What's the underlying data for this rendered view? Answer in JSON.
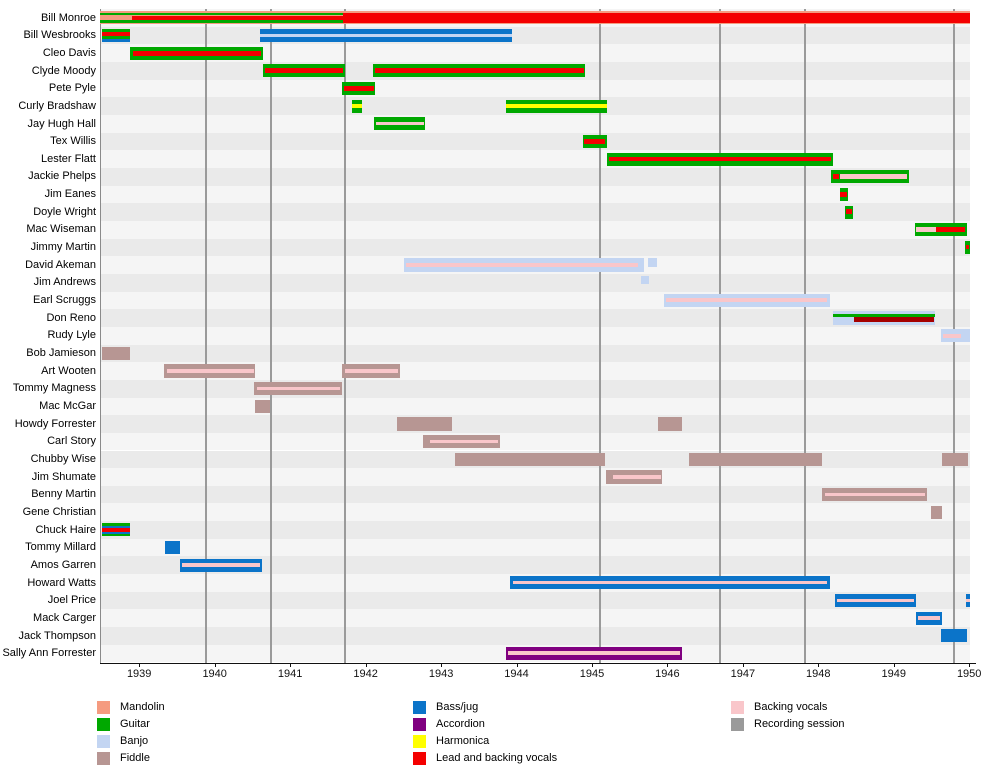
{
  "chart_data": {
    "type": "timeline",
    "title": "",
    "x_range": [
      1938.48,
      1950.01
    ],
    "x_ticks": [
      1939,
      1940,
      1941,
      1942,
      1943,
      1944,
      1945,
      1946,
      1947,
      1948,
      1949,
      1950
    ],
    "session_lines": [
      1939.89,
      1940.74,
      1941.73,
      1945.1,
      1946.7,
      1947.82,
      1949.8
    ],
    "colors": {
      "man": "#F59B80",
      "gtr": "#00A800",
      "ban": "#C3D5F2",
      "fid": "#B79693",
      "bas": "#0B74C9",
      "acc": "#800080",
      "har": "#FFFF00",
      "led": "#F40000",
      "drd": "#A50000",
      "bck": "#F9C6CA",
      "ses": "#9A9A9A"
    },
    "legend_columns": [
      [
        {
          "label": "Mandolin",
          "key": "man"
        },
        {
          "label": "Guitar",
          "key": "gtr"
        },
        {
          "label": "Banjo",
          "key": "ban"
        },
        {
          "label": "Fiddle",
          "key": "fid"
        }
      ],
      [
        {
          "label": "Bass/jug",
          "key": "bas"
        },
        {
          "label": "Accordion",
          "key": "acc"
        },
        {
          "label": "Harmonica",
          "key": "har"
        },
        {
          "label": "Lead and backing vocals",
          "key": "led"
        }
      ],
      [
        {
          "label": "Backing vocals",
          "key": "bck"
        },
        {
          "label": "Recording session",
          "key": "ses"
        }
      ]
    ],
    "strip_format": [
      "instrument",
      "start_year",
      "end_year",
      "top_frac",
      "bottom_frac"
    ],
    "members": [
      {
        "name": "Bill Monroe",
        "strips": [
          [
            "man",
            1938.48,
            1950.01,
            0,
            1
          ],
          [
            "gtr",
            1938.48,
            1941.7,
            0.1,
            0.3
          ],
          [
            "gtr",
            1938.48,
            1941.7,
            0.7,
            0.9
          ],
          [
            "led",
            1938.9,
            1941.7,
            0.33,
            0.67
          ],
          [
            "led",
            1941.7,
            1950.01,
            0.1,
            0.9
          ]
        ]
      },
      {
        "name": "Bill Wesbrooks",
        "strips": [
          [
            "gtr",
            1938.5,
            1938.88,
            0,
            0.22
          ],
          [
            "led",
            1938.5,
            1938.88,
            0.22,
            0.52
          ],
          [
            "gtr",
            1938.5,
            1938.88,
            0.52,
            0.75
          ],
          [
            "bas",
            1938.5,
            1938.88,
            0.75,
            1
          ],
          [
            "bas",
            1940.6,
            1943.94,
            0,
            1
          ],
          [
            "ban",
            1940.6,
            1943.94,
            0.35,
            0.62
          ]
        ]
      },
      {
        "name": "Cleo Davis",
        "strips": [
          [
            "gtr",
            1938.88,
            1940.64,
            0,
            1
          ],
          [
            "led",
            1938.92,
            1940.62,
            0.3,
            0.68
          ]
        ]
      },
      {
        "name": "Clyde Moody",
        "strips": [
          [
            "gtr",
            1940.64,
            1941.72,
            0,
            1
          ],
          [
            "led",
            1940.66,
            1941.7,
            0.3,
            0.68
          ],
          [
            "gtr",
            1942.1,
            1944.91,
            0,
            1
          ],
          [
            "led",
            1942.13,
            1944.89,
            0.3,
            0.68
          ]
        ]
      },
      {
        "name": "Pete Pyle",
        "strips": [
          [
            "gtr",
            1941.69,
            1942.13,
            0,
            1
          ],
          [
            "led",
            1941.71,
            1942.11,
            0.3,
            0.68
          ]
        ]
      },
      {
        "name": "Curly Bradshaw",
        "strips": [
          [
            "gtr",
            1941.82,
            1941.95,
            0,
            1
          ],
          [
            "har",
            1941.82,
            1941.95,
            0.35,
            0.65
          ],
          [
            "gtr",
            1943.86,
            1945.2,
            0,
            1
          ],
          [
            "har",
            1943.86,
            1945.2,
            0.35,
            0.65
          ]
        ]
      },
      {
        "name": "Jay Hugh Hall",
        "strips": [
          [
            "gtr",
            1942.11,
            1942.79,
            0,
            1
          ],
          [
            "bck",
            1942.14,
            1942.77,
            0.38,
            0.58
          ]
        ]
      },
      {
        "name": "Tex Willis",
        "strips": [
          [
            "gtr",
            1944.88,
            1945.2,
            0,
            1
          ],
          [
            "led",
            1944.9,
            1945.18,
            0.32,
            0.66
          ]
        ]
      },
      {
        "name": "Lester Flatt",
        "strips": [
          [
            "gtr",
            1945.2,
            1948.2,
            0,
            1
          ],
          [
            "led",
            1945.23,
            1948.17,
            0.32,
            0.66
          ]
        ]
      },
      {
        "name": "Jackie Phelps",
        "strips": [
          [
            "gtr",
            1948.17,
            1949.2,
            0,
            1
          ],
          [
            "led",
            1948.19,
            1948.28,
            0.3,
            0.66
          ],
          [
            "bck",
            1948.28,
            1949.17,
            0.3,
            0.66
          ]
        ]
      },
      {
        "name": "Jim Eanes",
        "strips": [
          [
            "gtr",
            1948.28,
            1948.39,
            0,
            1
          ],
          [
            "led",
            1948.29,
            1948.38,
            0.3,
            0.66
          ]
        ]
      },
      {
        "name": "Doyle Wright",
        "strips": [
          [
            "gtr",
            1948.35,
            1948.46,
            0,
            1
          ],
          [
            "led",
            1948.36,
            1948.45,
            0.3,
            0.66
          ]
        ]
      },
      {
        "name": "Mac Wiseman",
        "strips": [
          [
            "gtr",
            1949.28,
            1949.97,
            0,
            1
          ],
          [
            "bck",
            1949.3,
            1949.56,
            0.3,
            0.66
          ],
          [
            "led",
            1949.56,
            1949.94,
            0.3,
            0.66
          ]
        ]
      },
      {
        "name": "Jimmy Martin",
        "strips": [
          [
            "gtr",
            1949.94,
            1950.01,
            0,
            1
          ],
          [
            "led",
            1949.95,
            1950.0,
            0.3,
            0.66
          ]
        ]
      },
      {
        "name": "David Akeman",
        "strips": [
          [
            "ban",
            1942.51,
            1945.69,
            0,
            1
          ],
          [
            "bck",
            1942.54,
            1945.61,
            0.35,
            0.65
          ],
          [
            "ban",
            1945.74,
            1945.86,
            0,
            0.62
          ]
        ]
      },
      {
        "name": "Jim Andrews",
        "strips": [
          [
            "ban",
            1945.65,
            1945.76,
            0,
            0.62
          ]
        ]
      },
      {
        "name": "Earl Scruggs",
        "strips": [
          [
            "ban",
            1945.95,
            1948.15,
            0,
            1
          ],
          [
            "bck",
            1945.98,
            1948.12,
            0.35,
            0.65
          ]
        ]
      },
      {
        "name": "Don Reno",
        "strips": [
          [
            "ban",
            1948.19,
            1949.54,
            0,
            1
          ],
          [
            "gtr",
            1948.19,
            1949.54,
            0.16,
            0.4
          ],
          [
            "drd",
            1948.47,
            1949.54,
            0.4,
            0.78
          ]
        ]
      },
      {
        "name": "Rudy Lyle",
        "strips": [
          [
            "ban",
            1949.62,
            1950.01,
            0,
            1
          ],
          [
            "bck",
            1949.65,
            1949.89,
            0.35,
            0.65
          ]
        ]
      },
      {
        "name": "Bob Jamieson",
        "strips": [
          [
            "fid",
            1938.5,
            1938.88,
            0,
            1
          ]
        ]
      },
      {
        "name": "Art Wooten",
        "strips": [
          [
            "fid",
            1939.33,
            1940.54,
            0,
            1
          ],
          [
            "bck",
            1939.37,
            1940.52,
            0.38,
            0.62
          ],
          [
            "fid",
            1941.69,
            1942.46,
            0,
            1
          ],
          [
            "bck",
            1941.73,
            1942.43,
            0.38,
            0.62
          ]
        ]
      },
      {
        "name": "Tommy Magness",
        "strips": [
          [
            "fid",
            1940.52,
            1941.69,
            0,
            1
          ],
          [
            "bck",
            1940.56,
            1941.66,
            0.38,
            0.62
          ]
        ]
      },
      {
        "name": "Mac McGar",
        "strips": [
          [
            "fid",
            1940.54,
            1940.74,
            0,
            1
          ]
        ]
      },
      {
        "name": "Howdy Forrester",
        "strips": [
          [
            "fid",
            1942.42,
            1943.15,
            0,
            1
          ],
          [
            "fid",
            1945.87,
            1946.2,
            0,
            1
          ]
        ]
      },
      {
        "name": "Carl Story",
        "strips": [
          [
            "fid",
            1942.76,
            1943.78,
            0,
            1
          ],
          [
            "bck",
            1942.85,
            1943.76,
            0.38,
            0.62
          ]
        ]
      },
      {
        "name": "Chubby Wise",
        "strips": [
          [
            "fid",
            1943.19,
            1945.17,
            0,
            1
          ],
          [
            "fid",
            1946.28,
            1948.05,
            0,
            1
          ],
          [
            "fid",
            1949.64,
            1949.99,
            0,
            1
          ]
        ]
      },
      {
        "name": "Jim Shumate",
        "strips": [
          [
            "fid",
            1945.19,
            1945.93,
            0,
            1
          ],
          [
            "bck",
            1945.28,
            1945.91,
            0.38,
            0.62
          ]
        ]
      },
      {
        "name": "Benny Martin",
        "strips": [
          [
            "fid",
            1948.05,
            1949.44,
            0,
            1
          ],
          [
            "bck",
            1948.09,
            1949.41,
            0.36,
            0.62
          ]
        ]
      },
      {
        "name": "Gene Christian",
        "strips": [
          [
            "fid",
            1949.49,
            1949.64,
            0,
            1
          ]
        ]
      },
      {
        "name": "Chuck Haire",
        "strips": [
          [
            "gtr",
            1938.5,
            1938.88,
            0,
            0.2
          ],
          [
            "bas",
            1938.5,
            1938.88,
            0.2,
            0.38
          ],
          [
            "led",
            1938.5,
            1938.88,
            0.38,
            0.62
          ],
          [
            "bas",
            1938.5,
            1938.88,
            0.62,
            0.8
          ],
          [
            "gtr",
            1938.5,
            1938.88,
            0.8,
            1
          ]
        ]
      },
      {
        "name": "Tommy Millard",
        "strips": [
          [
            "bas",
            1939.34,
            1939.54,
            0,
            1
          ]
        ]
      },
      {
        "name": "Amos Garren",
        "strips": [
          [
            "bas",
            1939.54,
            1940.63,
            0,
            1
          ],
          [
            "bck",
            1939.57,
            1940.6,
            0.36,
            0.62
          ]
        ]
      },
      {
        "name": "Howard Watts",
        "strips": [
          [
            "bas",
            1943.91,
            1948.15,
            0,
            1
          ],
          [
            "bck",
            1943.95,
            1948.12,
            0.36,
            0.62
          ]
        ]
      },
      {
        "name": "Joel Price",
        "strips": [
          [
            "bas",
            1948.22,
            1949.29,
            0,
            1
          ],
          [
            "bck",
            1948.25,
            1949.27,
            0.36,
            0.62
          ],
          [
            "bas",
            1949.95,
            1950.01,
            0,
            1
          ],
          [
            "bck",
            1949.95,
            1950.01,
            0.36,
            0.62
          ]
        ]
      },
      {
        "name": "Mack Carger",
        "strips": [
          [
            "bas",
            1949.29,
            1949.64,
            0,
            1
          ],
          [
            "bck",
            1949.32,
            1949.62,
            0.36,
            0.62
          ]
        ]
      },
      {
        "name": "Jack Thompson",
        "strips": [
          [
            "bas",
            1949.62,
            1949.97,
            0,
            1
          ]
        ]
      },
      {
        "name": "Sally Ann Forrester",
        "strips": [
          [
            "acc",
            1943.86,
            1946.2,
            0,
            1
          ],
          [
            "bck",
            1943.89,
            1946.17,
            0.32,
            0.6
          ]
        ]
      }
    ]
  }
}
